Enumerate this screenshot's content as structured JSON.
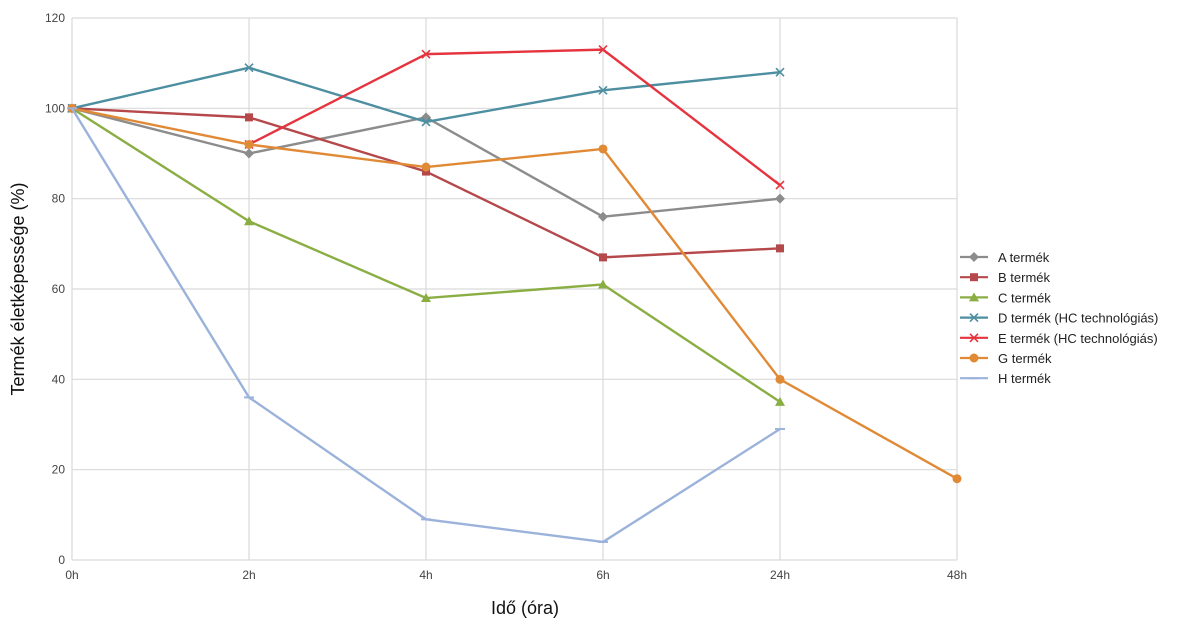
{
  "chart_data": {
    "type": "line",
    "categories": [
      "0h",
      "2h",
      "4h",
      "6h",
      "24h",
      "48h"
    ],
    "yticks": [
      0,
      20,
      40,
      60,
      80,
      100,
      120
    ],
    "ylim": [
      0,
      120
    ],
    "xlabel": "Idő (óra)",
    "ylabel": "Termék életképessége (%)",
    "grid": true,
    "legend_position": "right",
    "series": [
      {
        "name": "A termék",
        "color": "#8c8c8c",
        "marker": "diamond",
        "values": [
          100,
          90,
          98,
          76,
          80,
          null
        ]
      },
      {
        "name": "B termék",
        "color": "#b5484a",
        "marker": "square",
        "values": [
          100,
          98,
          86,
          67,
          69,
          null
        ]
      },
      {
        "name": "C termék",
        "color": "#8aae44",
        "marker": "triangle",
        "values": [
          100,
          75,
          58,
          61,
          35,
          null
        ]
      },
      {
        "name": "D termék (HC technológiás)",
        "color": "#4d8fa1",
        "marker": "x",
        "values": [
          100,
          109,
          97,
          104,
          108,
          null
        ]
      },
      {
        "name": "E termék (HC technológiás)",
        "color": "#e6343f",
        "marker": "x",
        "values": [
          null,
          92,
          112,
          113,
          83,
          null
        ]
      },
      {
        "name": "G termék",
        "color": "#e08a36",
        "marker": "circle",
        "values": [
          100,
          92,
          87,
          91,
          40,
          18
        ]
      },
      {
        "name": "H termék",
        "color": "#9bb2db",
        "marker": "dash",
        "values": [
          100,
          36,
          9,
          4,
          29,
          null
        ]
      }
    ]
  }
}
